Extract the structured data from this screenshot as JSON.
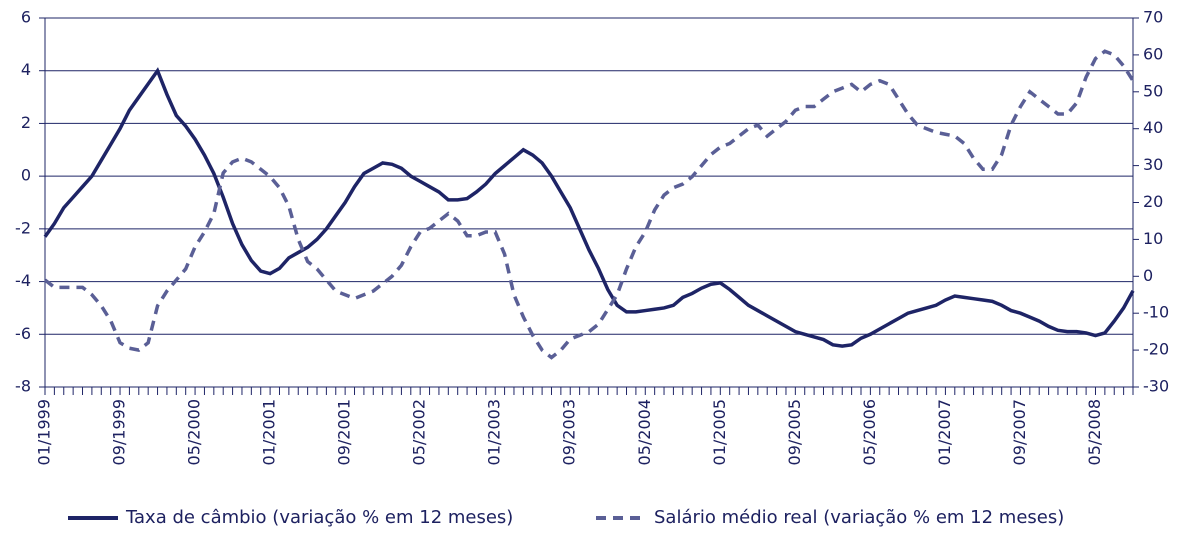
{
  "chart_data": {
    "type": "line",
    "categories": [
      "01/1999",
      null,
      null,
      null,
      null,
      null,
      null,
      null,
      "09/1999",
      null,
      null,
      null,
      null,
      null,
      null,
      null,
      "05/2000",
      null,
      null,
      null,
      null,
      null,
      null,
      null,
      "01/2001",
      null,
      null,
      null,
      null,
      null,
      null,
      null,
      "09/2001",
      null,
      null,
      null,
      null,
      null,
      null,
      null,
      "05/2002",
      null,
      null,
      null,
      null,
      null,
      null,
      null,
      "01/2003",
      null,
      null,
      null,
      null,
      null,
      null,
      null,
      "09/2003",
      null,
      null,
      null,
      null,
      null,
      null,
      null,
      "05/2004",
      null,
      null,
      null,
      null,
      null,
      null,
      null,
      "01/2005",
      null,
      null,
      null,
      null,
      null,
      null,
      null,
      "09/2005",
      null,
      null,
      null,
      null,
      null,
      null,
      null,
      "05/2006",
      null,
      null,
      null,
      null,
      null,
      null,
      null,
      "01/2007",
      null,
      null,
      null,
      null,
      null,
      null,
      null,
      "09/2007",
      null,
      null,
      null,
      null,
      null,
      null,
      null,
      "05/2008",
      null,
      null,
      null,
      null
    ],
    "series": [
      {
        "name": "Taxa de câmbio (variação % em 12 meses)",
        "color": "#1e2466",
        "dash": false,
        "axis": "y",
        "values": [
          -2.3,
          -1.8,
          -1.2,
          -0.8,
          -0.4,
          0.0,
          0.6,
          1.2,
          1.8,
          2.5,
          3.0,
          3.5,
          4.0,
          3.1,
          2.3,
          1.9,
          1.4,
          0.8,
          0.1,
          -0.8,
          -1.8,
          -2.6,
          -3.2,
          -3.6,
          -3.7,
          -3.5,
          -3.1,
          -2.9,
          -2.7,
          -2.4,
          -2.0,
          -1.5,
          -1.0,
          -0.4,
          0.1,
          0.3,
          0.5,
          0.45,
          0.3,
          0.0,
          -0.2,
          -0.4,
          -0.6,
          -0.9,
          -0.9,
          -0.85,
          -0.6,
          -0.3,
          0.1,
          0.4,
          0.7,
          1.0,
          0.8,
          0.5,
          0.0,
          -0.6,
          -1.2,
          -2.0,
          -2.8,
          -3.5,
          -4.3,
          -4.9,
          -5.15,
          -5.15,
          -5.1,
          -5.05,
          -5.0,
          -4.9,
          -4.6,
          -4.45,
          -4.25,
          -4.1,
          -4.05,
          -4.3,
          -4.6,
          -4.9,
          -5.1,
          -5.3,
          -5.5,
          -5.7,
          -5.9,
          -6.0,
          -6.1,
          -6.2,
          -6.4,
          -6.45,
          -6.4,
          -6.15,
          -6.0,
          -5.8,
          -5.6,
          -5.4,
          -5.2,
          -5.1,
          -5.0,
          -4.9,
          -4.7,
          -4.55,
          -4.6,
          -4.65,
          -4.7,
          -4.75,
          -4.9,
          -5.1,
          -5.2,
          -5.35,
          -5.5,
          -5.7,
          -5.85,
          -5.9,
          -5.9,
          -5.95,
          -6.05,
          -5.95,
          -5.5,
          -5.0,
          -4.35
        ]
      },
      {
        "name": "Salário médio real (variação % em 12 meses)",
        "color": "#5a5f96",
        "dash": true,
        "axis": "y2",
        "values": [
          -1,
          -3,
          -3,
          -3,
          -3,
          -5,
          -8,
          -12,
          -18,
          -19.5,
          -20,
          -18,
          -8,
          -4,
          -1,
          2,
          8,
          12,
          17,
          28,
          31,
          32,
          31,
          29,
          27,
          24,
          19,
          10,
          4,
          2,
          -1,
          -4,
          -5,
          -6,
          -5,
          -4,
          -2,
          0,
          3,
          8,
          12,
          13,
          15,
          17,
          15,
          11,
          11,
          12,
          12,
          6,
          -5,
          -11,
          -16,
          -20,
          -22,
          -20,
          -17,
          -16,
          -15,
          -13,
          -9,
          -5,
          2,
          8,
          12,
          18,
          22,
          24,
          25,
          27,
          30,
          33,
          35,
          36,
          38,
          40,
          41,
          38,
          40,
          42,
          45,
          46,
          46,
          48,
          50,
          51,
          52,
          50,
          52,
          53,
          52,
          48,
          44,
          41,
          40,
          39,
          38.5,
          38,
          36,
          32,
          29,
          29,
          33,
          41,
          46,
          50,
          48,
          46,
          44,
          44,
          47,
          54,
          59,
          61,
          60,
          57,
          53
        ]
      }
    ],
    "ylim": [
      -8,
      6
    ],
    "yticks": [
      -8,
      -6,
      -4,
      -2,
      0,
      2,
      4,
      6
    ],
    "y2lim": [
      -30,
      70
    ],
    "y2ticks": [
      -30,
      -20,
      -10,
      0,
      10,
      20,
      30,
      40,
      50,
      60,
      70
    ],
    "grid": true
  }
}
